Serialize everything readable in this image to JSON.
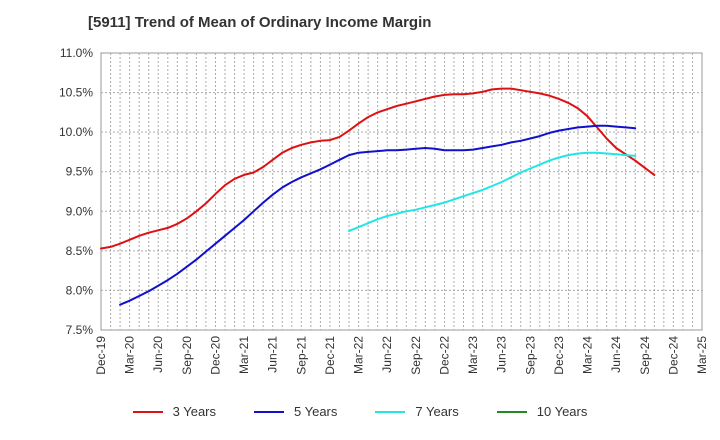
{
  "chart_data": {
    "type": "line",
    "title": "[5911]  Trend of Mean of Ordinary Income Margin",
    "xlabel": "",
    "ylabel": "",
    "x_ticks": [
      "Dec-19",
      "Mar-20",
      "Jun-20",
      "Sep-20",
      "Dec-20",
      "Mar-21",
      "Jun-21",
      "Sep-21",
      "Dec-21",
      "Mar-22",
      "Jun-22",
      "Sep-22",
      "Dec-22",
      "Mar-23",
      "Jun-23",
      "Sep-23",
      "Dec-23",
      "Mar-24",
      "Jun-24",
      "Sep-24",
      "Dec-24",
      "Mar-25"
    ],
    "y_ticks": [
      "7.5%",
      "8.0%",
      "8.5%",
      "9.0%",
      "9.5%",
      "10.0%",
      "10.5%",
      "11.0%"
    ],
    "ylim": [
      7.5,
      11.0
    ],
    "grid": true,
    "legend_position": "bottom",
    "series": [
      {
        "name": "3 Years",
        "color": "#dd1111",
        "points": [
          [
            "Dec-19",
            8.53
          ],
          [
            "Jan-20",
            8.55
          ],
          [
            "Feb-20",
            8.59
          ],
          [
            "Mar-20",
            8.64
          ],
          [
            "Apr-20",
            8.69
          ],
          [
            "May-20",
            8.73
          ],
          [
            "Jun-20",
            8.76
          ],
          [
            "Jul-20",
            8.79
          ],
          [
            "Aug-20",
            8.84
          ],
          [
            "Sep-20",
            8.91
          ],
          [
            "Oct-20",
            9.0
          ],
          [
            "Nov-20",
            9.1
          ],
          [
            "Dec-20",
            9.22
          ],
          [
            "Jan-21",
            9.33
          ],
          [
            "Feb-21",
            9.41
          ],
          [
            "Mar-21",
            9.46
          ],
          [
            "Apr-21",
            9.49
          ],
          [
            "May-21",
            9.56
          ],
          [
            "Jun-21",
            9.65
          ],
          [
            "Jul-21",
            9.74
          ],
          [
            "Aug-21",
            9.8
          ],
          [
            "Sep-21",
            9.84
          ],
          [
            "Oct-21",
            9.87
          ],
          [
            "Nov-21",
            9.89
          ],
          [
            "Dec-21",
            9.9
          ],
          [
            "Jan-22",
            9.94
          ],
          [
            "Feb-22",
            10.02
          ],
          [
            "Mar-22",
            10.11
          ],
          [
            "Apr-22",
            10.19
          ],
          [
            "May-22",
            10.25
          ],
          [
            "Jun-22",
            10.29
          ],
          [
            "Jul-22",
            10.33
          ],
          [
            "Aug-22",
            10.36
          ],
          [
            "Sep-22",
            10.39
          ],
          [
            "Oct-22",
            10.42
          ],
          [
            "Nov-22",
            10.45
          ],
          [
            "Dec-22",
            10.47
          ],
          [
            "Jan-23",
            10.48
          ],
          [
            "Feb-23",
            10.48
          ],
          [
            "Mar-23",
            10.49
          ],
          [
            "Apr-23",
            10.51
          ],
          [
            "May-23",
            10.54
          ],
          [
            "Jun-23",
            10.55
          ],
          [
            "Jul-23",
            10.55
          ],
          [
            "Aug-23",
            10.53
          ],
          [
            "Sep-23",
            10.51
          ],
          [
            "Oct-23",
            10.49
          ],
          [
            "Nov-23",
            10.46
          ],
          [
            "Dec-23",
            10.42
          ],
          [
            "Jan-24",
            10.37
          ],
          [
            "Feb-24",
            10.3
          ],
          [
            "Mar-24",
            10.2
          ],
          [
            "Apr-24",
            10.06
          ],
          [
            "May-24",
            9.92
          ],
          [
            "Jun-24",
            9.8
          ],
          [
            "Jul-24",
            9.72
          ],
          [
            "Aug-24",
            9.64
          ],
          [
            "Sep-24",
            9.55
          ],
          [
            "Oct-24",
            9.46
          ]
        ]
      },
      {
        "name": "5 Years",
        "color": "#1111cc",
        "points": [
          [
            "Feb-20",
            7.82
          ],
          [
            "Mar-20",
            7.87
          ],
          [
            "Apr-20",
            7.93
          ],
          [
            "May-20",
            7.99
          ],
          [
            "Jun-20",
            8.06
          ],
          [
            "Jul-20",
            8.13
          ],
          [
            "Aug-20",
            8.21
          ],
          [
            "Sep-20",
            8.3
          ],
          [
            "Oct-20",
            8.39
          ],
          [
            "Nov-20",
            8.49
          ],
          [
            "Dec-20",
            8.59
          ],
          [
            "Jan-21",
            8.69
          ],
          [
            "Feb-21",
            8.79
          ],
          [
            "Mar-21",
            8.89
          ],
          [
            "Apr-21",
            9.0
          ],
          [
            "May-21",
            9.11
          ],
          [
            "Jun-21",
            9.21
          ],
          [
            "Jul-21",
            9.3
          ],
          [
            "Aug-21",
            9.37
          ],
          [
            "Sep-21",
            9.43
          ],
          [
            "Oct-21",
            9.48
          ],
          [
            "Nov-21",
            9.53
          ],
          [
            "Dec-21",
            9.59
          ],
          [
            "Jan-22",
            9.65
          ],
          [
            "Feb-22",
            9.71
          ],
          [
            "Mar-22",
            9.74
          ],
          [
            "Apr-22",
            9.75
          ],
          [
            "May-22",
            9.76
          ],
          [
            "Jun-22",
            9.77
          ],
          [
            "Jul-22",
            9.77
          ],
          [
            "Aug-22",
            9.78
          ],
          [
            "Sep-22",
            9.79
          ],
          [
            "Oct-22",
            9.8
          ],
          [
            "Nov-22",
            9.79
          ],
          [
            "Dec-22",
            9.77
          ],
          [
            "Jan-23",
            9.77
          ],
          [
            "Feb-23",
            9.77
          ],
          [
            "Mar-23",
            9.78
          ],
          [
            "Apr-23",
            9.8
          ],
          [
            "May-23",
            9.82
          ],
          [
            "Jun-23",
            9.84
          ],
          [
            "Jul-23",
            9.87
          ],
          [
            "Aug-23",
            9.89
          ],
          [
            "Sep-23",
            9.92
          ],
          [
            "Oct-23",
            9.95
          ],
          [
            "Nov-23",
            9.99
          ],
          [
            "Dec-23",
            10.02
          ],
          [
            "Jan-24",
            10.04
          ],
          [
            "Feb-24",
            10.06
          ],
          [
            "Mar-24",
            10.07
          ],
          [
            "Apr-24",
            10.08
          ],
          [
            "May-24",
            10.08
          ],
          [
            "Jun-24",
            10.07
          ],
          [
            "Jul-24",
            10.06
          ],
          [
            "Aug-24",
            10.05
          ]
        ]
      },
      {
        "name": "7 Years",
        "color": "#22e5e5",
        "points": [
          [
            "Feb-22",
            8.75
          ],
          [
            "Mar-22",
            8.8
          ],
          [
            "Apr-22",
            8.85
          ],
          [
            "May-22",
            8.9
          ],
          [
            "Jun-22",
            8.94
          ],
          [
            "Jul-22",
            8.97
          ],
          [
            "Aug-22",
            9.0
          ],
          [
            "Sep-22",
            9.02
          ],
          [
            "Oct-22",
            9.05
          ],
          [
            "Nov-22",
            9.08
          ],
          [
            "Dec-22",
            9.11
          ],
          [
            "Jan-23",
            9.15
          ],
          [
            "Feb-23",
            9.19
          ],
          [
            "Mar-23",
            9.23
          ],
          [
            "Apr-23",
            9.27
          ],
          [
            "May-23",
            9.32
          ],
          [
            "Jun-23",
            9.37
          ],
          [
            "Jul-23",
            9.43
          ],
          [
            "Aug-23",
            9.49
          ],
          [
            "Sep-23",
            9.54
          ],
          [
            "Oct-23",
            9.59
          ],
          [
            "Nov-23",
            9.64
          ],
          [
            "Dec-23",
            9.68
          ],
          [
            "Jan-24",
            9.71
          ],
          [
            "Feb-24",
            9.73
          ],
          [
            "Mar-24",
            9.74
          ],
          [
            "Apr-24",
            9.74
          ],
          [
            "May-24",
            9.73
          ],
          [
            "Jun-24",
            9.72
          ],
          [
            "Jul-24",
            9.71
          ],
          [
            "Aug-24",
            9.7
          ]
        ]
      },
      {
        "name": "10 Years",
        "color": "#228822",
        "points": []
      }
    ]
  },
  "legend": [
    {
      "label": "3 Years",
      "color": "#dd1111"
    },
    {
      "label": "5 Years",
      "color": "#1111cc"
    },
    {
      "label": "7 Years",
      "color": "#22e5e5"
    },
    {
      "label": "10 Years",
      "color": "#228822"
    }
  ]
}
